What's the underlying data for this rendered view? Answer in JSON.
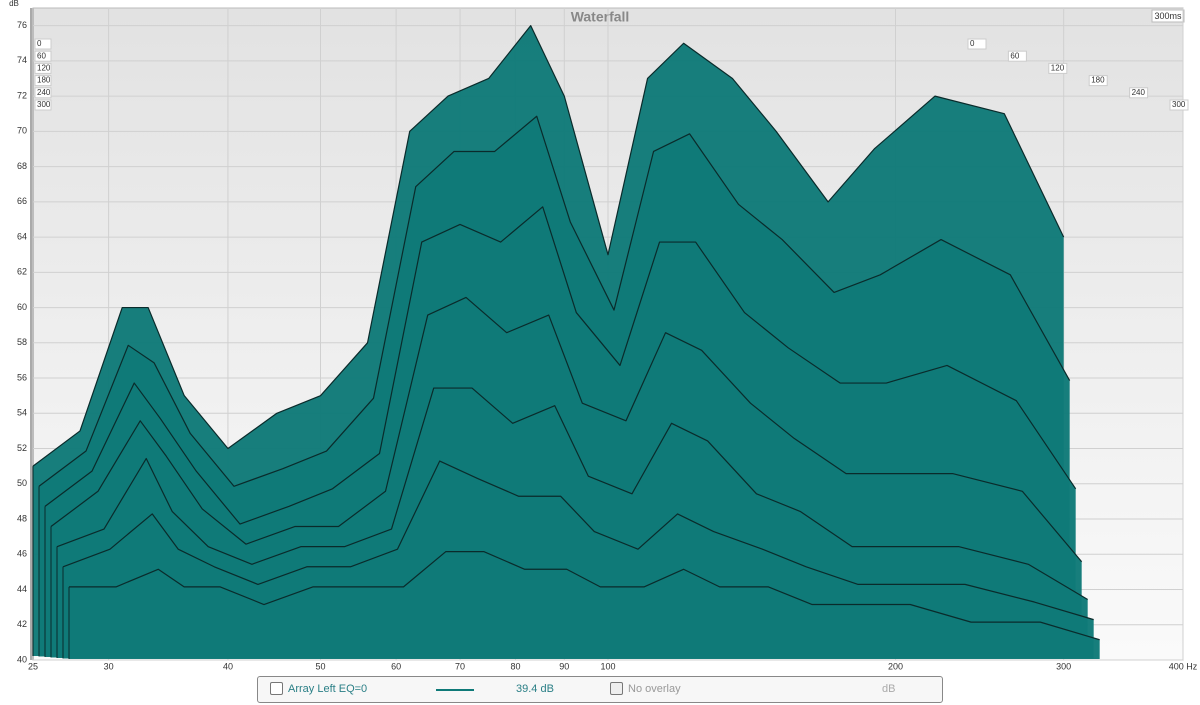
{
  "chart_data": {
    "type": "waterfall",
    "title": "Waterfall",
    "y_unit": "dB",
    "time_range_label": "300ms",
    "log_x": true,
    "grid": true,
    "color": "#0f7a78",
    "xlim": [
      25,
      400
    ],
    "xticks": [
      25,
      30,
      40,
      50,
      60,
      70,
      80,
      90,
      100,
      200,
      300,
      {
        "value": 400,
        "label": "400 Hz"
      }
    ],
    "ylim": [
      40,
      77
    ],
    "yticks": [
      40,
      42,
      44,
      46,
      48,
      50,
      52,
      54,
      56,
      58,
      60,
      62,
      64,
      66,
      68,
      70,
      72,
      74,
      76
    ],
    "zticks": [
      0,
      60,
      120,
      180,
      240,
      300
    ],
    "x": [
      25,
      28,
      31,
      33,
      36,
      40,
      45,
      50,
      56,
      62,
      68,
      75,
      83,
      90,
      100,
      110,
      120,
      135,
      150,
      170,
      190,
      220,
      260,
      300
    ],
    "slices": [
      {
        "time": 0,
        "values": [
          51,
          53,
          60,
          60,
          55,
          52,
          54,
          55,
          58,
          70,
          72,
          73,
          76,
          72,
          63,
          73,
          75,
          73,
          70,
          66,
          69,
          72,
          71,
          64
        ]
      },
      {
        "time": 50,
        "values": [
          50,
          52,
          58,
          57,
          53,
          50,
          51,
          52,
          55,
          67,
          69,
          69,
          71,
          65,
          60,
          69,
          70,
          66,
          64,
          61,
          62,
          64,
          62,
          56
        ]
      },
      {
        "time": 100,
        "values": [
          49,
          51,
          56,
          54,
          51,
          48,
          49,
          50,
          52,
          64,
          65,
          64,
          66,
          60,
          57,
          64,
          64,
          60,
          58,
          56,
          56,
          57,
          55,
          50
        ]
      },
      {
        "time": 150,
        "values": [
          48,
          50,
          54,
          52,
          49,
          47,
          48,
          48,
          50,
          60,
          61,
          59,
          60,
          55,
          54,
          59,
          58,
          55,
          53,
          51,
          51,
          51,
          50,
          46
        ]
      },
      {
        "time": 200,
        "values": [
          47,
          48,
          52,
          49,
          47,
          46,
          47,
          47,
          48,
          56,
          56,
          54,
          55,
          51,
          50,
          54,
          53,
          50,
          49,
          47,
          47,
          47,
          46,
          44
        ]
      },
      {
        "time": 250,
        "values": [
          46,
          47,
          49,
          47,
          46,
          45,
          46,
          46,
          47,
          52,
          51,
          50,
          50,
          48,
          47,
          49,
          48,
          47,
          46,
          45,
          45,
          45,
          44,
          43
        ]
      },
      {
        "time": 300,
        "values": [
          45,
          45,
          46,
          45,
          45,
          44,
          45,
          45,
          45,
          47,
          47,
          46,
          46,
          45,
          45,
          46,
          45,
          45,
          44,
          44,
          44,
          43,
          43,
          42
        ]
      }
    ],
    "controls": {
      "trace_name": "Array Left EQ=0",
      "trace_level": "39.4 dB",
      "overlay": "No overlay",
      "overlay_unit": "dB"
    }
  }
}
